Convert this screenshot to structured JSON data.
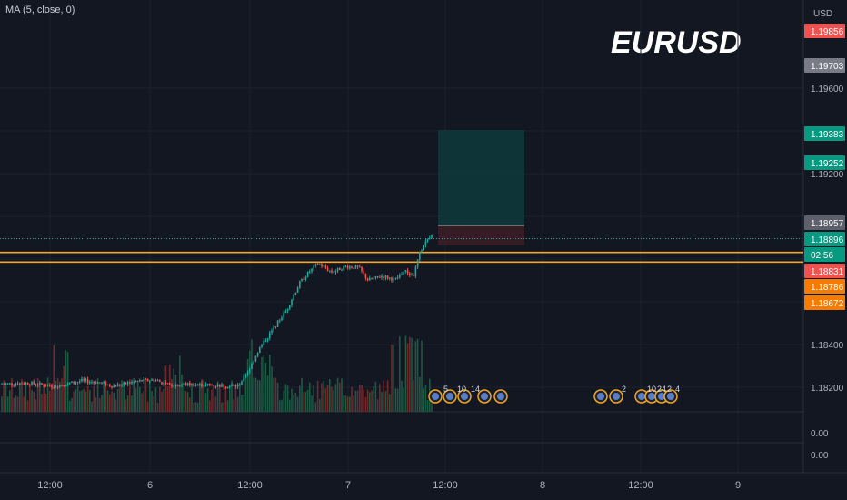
{
  "indicator": "MA (5, close, 0)",
  "symbol": "EURUSD",
  "currency": "USD",
  "colors": {
    "background": "#131722",
    "grid": "#1e222d",
    "up": "#26a69a",
    "down": "#ef5350",
    "line": "#f5a623",
    "tp_zone": "#0e3a3c",
    "sl_zone": "#3b1e26",
    "axis_text": "#b2b5be"
  },
  "chart_data": {
    "type": "candlestick",
    "x_ticks": [
      "12:00",
      "6",
      "12:00",
      "7",
      "12:00",
      "8",
      "12:00",
      "9"
    ],
    "y_ticks": [
      "1.19600",
      "1.19200",
      "1.18400",
      "1.18200"
    ],
    "volume_ticks": [
      "0.00",
      "0.00"
    ],
    "price_labels": [
      {
        "text": "1.19856",
        "value": 1.19856,
        "color": "#ef5350"
      },
      {
        "text": "1.19703",
        "value": 1.19703,
        "color": "#787b86"
      },
      {
        "text": "1.19383",
        "value": 1.19383,
        "color": "#089981"
      },
      {
        "text": "1.19252",
        "value": 1.19252,
        "color": "#089981"
      },
      {
        "text": "1.18957",
        "value": 1.18957,
        "color": "#5d606b"
      },
      {
        "text": "1.18896",
        "value": 1.18896,
        "color": "#089981"
      },
      {
        "text": "02:56",
        "value": 1.1885,
        "color": "#089981"
      },
      {
        "text": "1.18831",
        "value": 1.18831,
        "color": "#ef5350"
      },
      {
        "text": "1.18786",
        "value": 1.18786,
        "color": "#f57c00"
      },
      {
        "text": "1.18672",
        "value": 1.18672,
        "color": "#f57c00"
      }
    ],
    "horizontal_lines": [
      1.18831,
      1.18786
    ],
    "last_price": 1.18896,
    "position": {
      "entry": 1.18957,
      "take_profit": 1.19383,
      "stop_loss": 1.18831
    },
    "event_markers": [
      "5",
      "10",
      "14",
      "2",
      "10",
      "24",
      "2",
      "4"
    ]
  }
}
